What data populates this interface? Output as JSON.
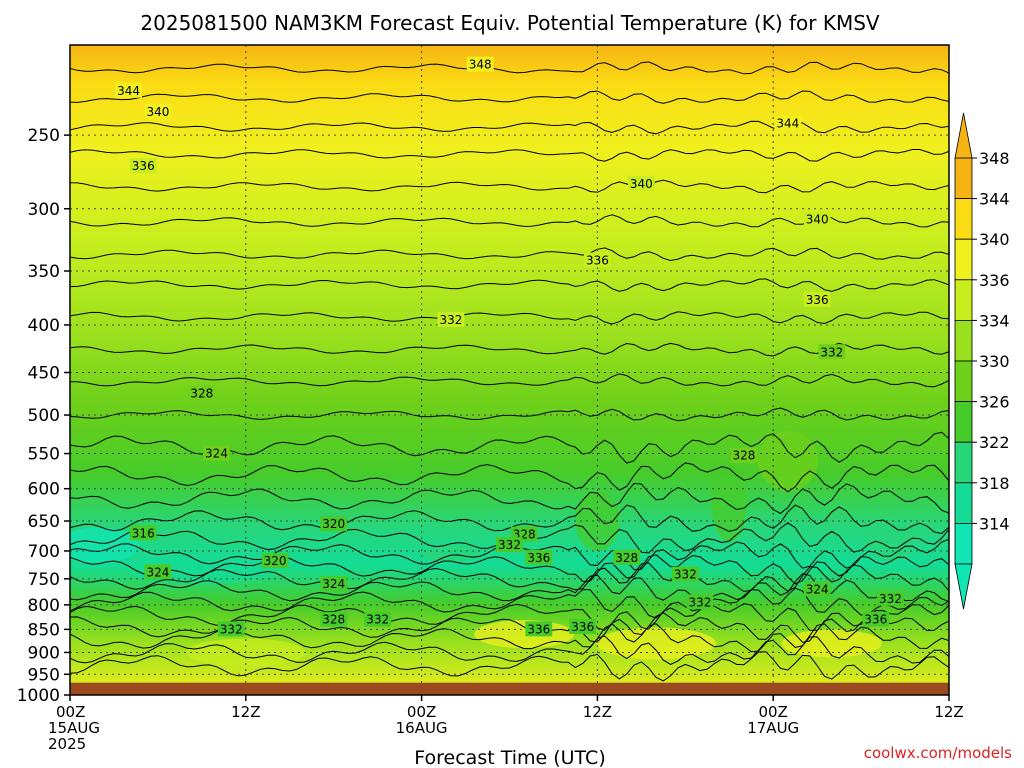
{
  "title": "2025081500 NAM3KM Forecast Equiv. Potential Temperature (K) for KMSV",
  "credit": "coolwx.com/models",
  "colors": {
    "ground": "#9a4a1e",
    "contour": "#000000",
    "grid": "#444444"
  },
  "chart_data": {
    "type": "heatmap",
    "title": "2025081500 NAM3KM Forecast Equiv. Potential Temperature (K) for KMSV",
    "xlabel": "Forecast Time (UTC)",
    "ylabel": "",
    "x_hours_range": [
      0,
      60
    ],
    "y_range_hPa": [
      1000,
      200
    ],
    "y_scale": "log",
    "grid": true,
    "grid_style": "dotted",
    "y_ticks": [
      "250",
      "300",
      "350",
      "400",
      "450",
      "500",
      "550",
      "600",
      "650",
      "700",
      "750",
      "800",
      "850",
      "900",
      "950",
      "1000"
    ],
    "y_tick_values": [
      250,
      300,
      350,
      400,
      450,
      500,
      550,
      600,
      650,
      700,
      750,
      800,
      850,
      900,
      950,
      1000
    ],
    "x_ticks": [
      {
        "hour": 0,
        "lines": [
          "00Z",
          "15AUG",
          "2025"
        ]
      },
      {
        "hour": 12,
        "lines": [
          "12Z"
        ]
      },
      {
        "hour": 24,
        "lines": [
          "00Z",
          "16AUG"
        ]
      },
      {
        "hour": 36,
        "lines": [
          "12Z"
        ]
      },
      {
        "hour": 48,
        "lines": [
          "00Z",
          "17AUG"
        ]
      },
      {
        "hour": 60,
        "lines": [
          "12Z"
        ]
      }
    ],
    "colorbar": {
      "levels": [
        "314",
        "318",
        "322",
        "326",
        "330",
        "334",
        "336",
        "340",
        "344",
        "348"
      ],
      "colors": [
        "#10e6b4",
        "#14dc96",
        "#28d67a",
        "#46cc2a",
        "#6ed01a",
        "#9ae01e",
        "#c8ee1e",
        "#f0f01e",
        "#fadc14",
        "#f6b414"
      ]
    },
    "surface_pressure_hPa": 970,
    "contour_labels": [
      {
        "text": "348",
        "hour": 28,
        "hPa": 210
      },
      {
        "text": "344",
        "hour": 4,
        "hPa": 224
      },
      {
        "text": "340",
        "hour": 6,
        "hPa": 236
      },
      {
        "text": "336",
        "hour": 5,
        "hPa": 270
      },
      {
        "text": "344",
        "hour": 49,
        "hPa": 243
      },
      {
        "text": "340",
        "hour": 39,
        "hPa": 282
      },
      {
        "text": "340",
        "hour": 51,
        "hPa": 308
      },
      {
        "text": "336",
        "hour": 36,
        "hPa": 341
      },
      {
        "text": "336",
        "hour": 51,
        "hPa": 376
      },
      {
        "text": "332",
        "hour": 26,
        "hPa": 395
      },
      {
        "text": "332",
        "hour": 52,
        "hPa": 428
      },
      {
        "text": "328",
        "hour": 9,
        "hPa": 474
      },
      {
        "text": "328",
        "hour": 46,
        "hPa": 553
      },
      {
        "text": "324",
        "hour": 10,
        "hPa": 550
      },
      {
        "text": "320",
        "hour": 18,
        "hPa": 655
      },
      {
        "text": "316",
        "hour": 5,
        "hPa": 670
      },
      {
        "text": "328",
        "hour": 31,
        "hPa": 672
      },
      {
        "text": "332",
        "hour": 30,
        "hPa": 690
      },
      {
        "text": "336",
        "hour": 32,
        "hPa": 712
      },
      {
        "text": "324",
        "hour": 6,
        "hPa": 738
      },
      {
        "text": "320",
        "hour": 14,
        "hPa": 718
      },
      {
        "text": "324",
        "hour": 18,
        "hPa": 760
      },
      {
        "text": "328",
        "hour": 38,
        "hPa": 712
      },
      {
        "text": "332",
        "hour": 42,
        "hPa": 742
      },
      {
        "text": "324",
        "hour": 51,
        "hPa": 770
      },
      {
        "text": "332",
        "hour": 56,
        "hPa": 788
      },
      {
        "text": "332",
        "hour": 43,
        "hPa": 795
      },
      {
        "text": "328",
        "hour": 18,
        "hPa": 830
      },
      {
        "text": "332",
        "hour": 21,
        "hPa": 830
      },
      {
        "text": "332",
        "hour": 11,
        "hPa": 850
      },
      {
        "text": "336",
        "hour": 32,
        "hPa": 850
      },
      {
        "text": "336",
        "hour": 35,
        "hPa": 845
      },
      {
        "text": "336",
        "hour": 55,
        "hPa": 830
      }
    ]
  }
}
